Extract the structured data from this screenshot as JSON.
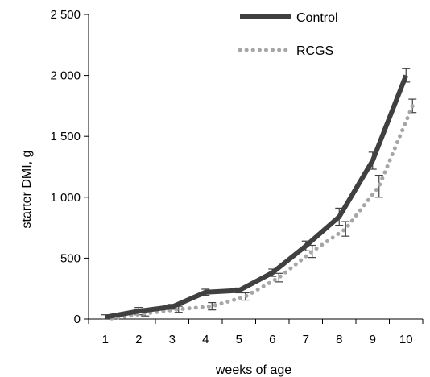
{
  "chart_data": {
    "type": "line",
    "xlabel": "weeks of age",
    "ylabel": "starter DMI, g",
    "x": [
      1,
      2,
      3,
      4,
      5,
      6,
      7,
      8,
      9,
      10
    ],
    "ylim": [
      0,
      2500
    ],
    "yticks": [
      0,
      500,
      1000,
      1500,
      2000,
      2500
    ],
    "ytick_labels": [
      "0",
      "500",
      "1 000",
      "1 500",
      "2 000",
      "2 500"
    ],
    "grid": false,
    "legend_position": "top-right",
    "series": [
      {
        "name": "Control",
        "style": "solid",
        "color": "#404040",
        "values": [
          15,
          65,
          100,
          220,
          235,
          380,
          600,
          840,
          1300,
          2000
        ],
        "errors": [
          20,
          30,
          20,
          25,
          20,
          30,
          40,
          70,
          70,
          55
        ]
      },
      {
        "name": "RCGS",
        "style": "dotted",
        "color": "#a6a6a6",
        "values": [
          5,
          45,
          80,
          105,
          185,
          340,
          555,
          740,
          1090,
          1750
        ],
        "errors": [
          15,
          20,
          25,
          30,
          30,
          35,
          50,
          60,
          90,
          55
        ]
      }
    ]
  }
}
